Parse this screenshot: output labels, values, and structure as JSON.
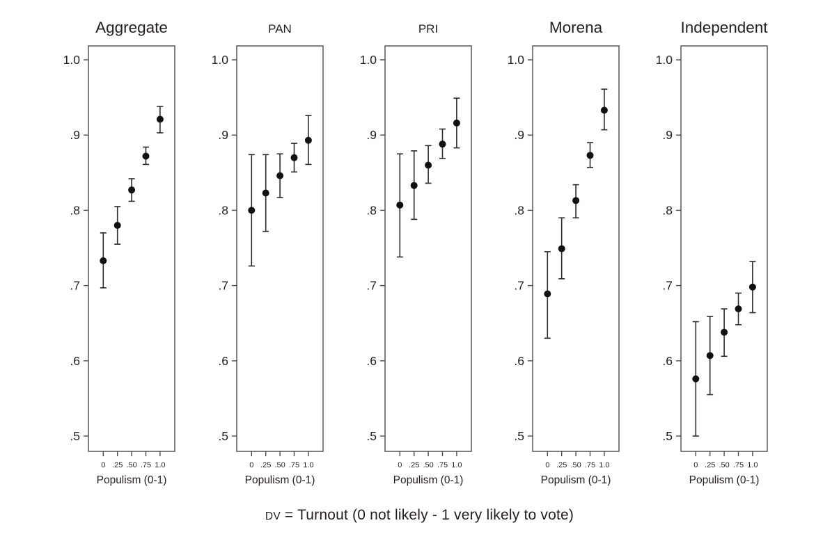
{
  "figure": {
    "caption_prefix": "DV",
    "caption_rest": " = Turnout (0 not likely - 1 very likely to vote)"
  },
  "chart_data": {
    "type": "scatter",
    "subtype": "point-estimates-with-95ci-error-bars",
    "layout": "five small-multiple panels sharing identical axes, legend none, grid off",
    "x": [
      0,
      0.25,
      0.5,
      0.75,
      1.0
    ],
    "x_tick_labels": [
      "0",
      ".25",
      ".50",
      ".75",
      "1.0"
    ],
    "xlabel": "Populism (0-1)",
    "y_ticks": [
      1.0,
      0.9,
      0.8,
      0.7,
      0.6,
      0.5
    ],
    "y_tick_labels": [
      "1.0",
      ".9",
      ".8",
      ".7",
      ".6",
      ".5"
    ],
    "ylim": [
      0.48,
      1.02
    ],
    "caption": "DV = Turnout (0 not likely - 1 very likely to vote)",
    "panels": [
      {
        "title": "Aggregate",
        "title_size": "large",
        "means": [
          0.733,
          0.78,
          0.827,
          0.872,
          0.921
        ],
        "ci_low": [
          0.697,
          0.755,
          0.812,
          0.861,
          0.903
        ],
        "ci_high": [
          0.77,
          0.805,
          0.842,
          0.884,
          0.938
        ]
      },
      {
        "title": "PAN",
        "title_size": "small",
        "means": [
          0.8,
          0.823,
          0.846,
          0.87,
          0.893
        ],
        "ci_low": [
          0.726,
          0.772,
          0.817,
          0.851,
          0.861
        ],
        "ci_high": [
          0.874,
          0.874,
          0.875,
          0.889,
          0.926
        ]
      },
      {
        "title": "PRI",
        "title_size": "small",
        "means": [
          0.807,
          0.833,
          0.86,
          0.888,
          0.916
        ],
        "ci_low": [
          0.738,
          0.788,
          0.836,
          0.869,
          0.883
        ],
        "ci_high": [
          0.875,
          0.879,
          0.886,
          0.908,
          0.949
        ]
      },
      {
        "title": "Morena",
        "title_size": "large",
        "means": [
          0.689,
          0.749,
          0.813,
          0.873,
          0.933
        ],
        "ci_low": [
          0.63,
          0.709,
          0.79,
          0.857,
          0.907
        ],
        "ci_high": [
          0.745,
          0.79,
          0.834,
          0.89,
          0.961
        ]
      },
      {
        "title": "Independent",
        "title_size": "large",
        "means": [
          0.576,
          0.607,
          0.638,
          0.669,
          0.698
        ],
        "ci_low": [
          0.5,
          0.555,
          0.606,
          0.648,
          0.664
        ],
        "ci_high": [
          0.652,
          0.659,
          0.669,
          0.69,
          0.732
        ]
      }
    ]
  },
  "colors": {
    "background": "#ffffff",
    "box_border": "#4a4a4a",
    "tick": "#4a4a4a",
    "point": "#111111",
    "error_bar": "#2b2b2b",
    "text": "#231f20"
  }
}
